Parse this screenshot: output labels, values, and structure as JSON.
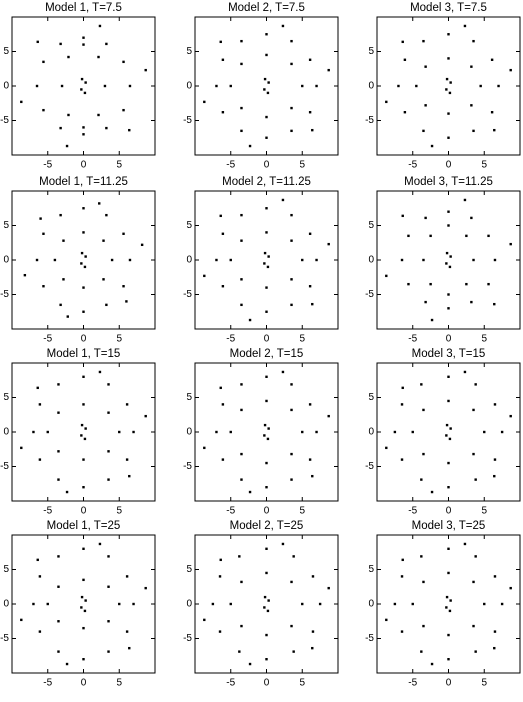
{
  "chart_data": [
    {
      "type": "scatter",
      "title": "Model 1, T=7.5",
      "xlim": [
        -10,
        10
      ],
      "ylim": [
        -10,
        10
      ],
      "xticks": [
        -5,
        0,
        5
      ],
      "yticks": [
        -5,
        0,
        5
      ],
      "color": "#000000",
      "x": [
        6.5,
        5.6,
        3.2,
        0,
        -3.2,
        -5.6,
        -6.5,
        -5.6,
        -3.2,
        0,
        3.2,
        5.6,
        3,
        2.1,
        0,
        -2.1,
        -3,
        -2.1,
        0,
        2.1,
        0.3,
        -0.3,
        0.2,
        -0.2,
        8.7,
        2.3,
        -6.4,
        -8.7,
        -2.3,
        6.4
      ],
      "y": [
        0,
        3.5,
        6.1,
        7,
        6.1,
        3.5,
        0,
        -3.5,
        -6.1,
        -7,
        -6.1,
        -3.5,
        0,
        4.2,
        6,
        4.2,
        0,
        -4.2,
        -6,
        -4.2,
        0.5,
        -0.5,
        -1,
        1,
        2.3,
        8.7,
        6.4,
        -2.3,
        -8.7,
        -6.4
      ]
    },
    {
      "type": "scatter",
      "title": "Model 2, T=7.5",
      "xlim": [
        -10,
        10
      ],
      "ylim": [
        -10,
        10
      ],
      "xticks": [
        -5,
        0,
        5
      ],
      "yticks": [
        -5,
        0,
        5
      ],
      "color": "#000000",
      "x": [
        7,
        6.1,
        3.5,
        0,
        -3.5,
        -6.1,
        -7,
        -6.1,
        -3.5,
        0,
        3.5,
        6.1,
        5,
        3.5,
        0,
        -3.5,
        -5,
        -3.5,
        0,
        3.5,
        0.3,
        -0.3,
        0.2,
        -0.2,
        8.7,
        2.3,
        -6.4,
        -8.7,
        -2.3,
        6.4
      ],
      "y": [
        0,
        3.8,
        6.5,
        7.5,
        6.5,
        3.8,
        0,
        -3.8,
        -6.5,
        -7.5,
        -6.5,
        -3.8,
        0,
        3.2,
        4.5,
        3.2,
        0,
        -3.2,
        -4.5,
        -3.2,
        0.5,
        -0.5,
        -1,
        1,
        2.3,
        8.7,
        6.4,
        -2.3,
        -8.7,
        -6.4
      ]
    },
    {
      "type": "scatter",
      "title": "Model 3, T=7.5",
      "xlim": [
        -10,
        10
      ],
      "ylim": [
        -10,
        10
      ],
      "xticks": [
        -5,
        0,
        5
      ],
      "yticks": [
        -5,
        0,
        5
      ],
      "color": "#000000",
      "x": [
        7,
        6.1,
        3.5,
        0,
        -3.5,
        -6.1,
        -7,
        -6.1,
        -3.5,
        0,
        3.5,
        6.1,
        4.5,
        3.2,
        0,
        -3.2,
        -4.5,
        -3.2,
        0,
        3.2,
        0.3,
        -0.3,
        0.2,
        -0.2,
        8.7,
        2.3,
        -6.4,
        -8.7,
        -2.3,
        6.4
      ],
      "y": [
        0,
        3.8,
        6.5,
        7.5,
        6.5,
        3.8,
        0,
        -3.8,
        -6.5,
        -7.5,
        -6.5,
        -3.8,
        0,
        2.8,
        4,
        2.8,
        0,
        -2.8,
        -4,
        -2.8,
        0.5,
        -0.5,
        -1,
        1,
        2.3,
        8.7,
        6.4,
        -2.3,
        -8.7,
        -6.4
      ]
    },
    {
      "type": "scatter",
      "title": "Model 1, T=11.25",
      "xlim": [
        -10,
        10
      ],
      "ylim": [
        -10,
        10
      ],
      "xticks": [
        -5,
        0,
        5
      ],
      "yticks": [
        -5,
        0,
        5
      ],
      "color": "#000000",
      "x": [
        6.5,
        5.6,
        3.2,
        0,
        -3.2,
        -5.6,
        -6.5,
        -5.6,
        -3.2,
        0,
        3.2,
        5.6,
        4,
        2.8,
        0,
        -2.8,
        -4,
        -2.8,
        0,
        2.8,
        0.3,
        -0.3,
        0.2,
        -0.2,
        8.2,
        2.2,
        -6,
        -8.2,
        -2.2,
        6
      ],
      "y": [
        0,
        3.8,
        6.5,
        7.5,
        6.5,
        3.8,
        0,
        -3.8,
        -6.5,
        -7.5,
        -6.5,
        -3.8,
        0,
        2.8,
        4,
        2.8,
        0,
        -2.8,
        -4,
        -2.8,
        0.5,
        -0.5,
        -1,
        1,
        2.2,
        8.2,
        6,
        -2.2,
        -8.2,
        -6
      ]
    },
    {
      "type": "scatter",
      "title": "Model 2, T=11.25",
      "xlim": [
        -10,
        10
      ],
      "ylim": [
        -10,
        10
      ],
      "xticks": [
        -5,
        0,
        5
      ],
      "yticks": [
        -5,
        0,
        5
      ],
      "color": "#000000",
      "x": [
        7,
        6.1,
        3.5,
        0,
        -3.5,
        -6.1,
        -7,
        -6.1,
        -3.5,
        0,
        3.5,
        6.1,
        5,
        3.5,
        0,
        -3.5,
        -5,
        -3.5,
        0,
        3.5,
        0.3,
        -0.3,
        0.2,
        -0.2,
        8.7,
        2.3,
        -6.4,
        -8.7,
        -2.3,
        6.4
      ],
      "y": [
        0,
        3.8,
        6.5,
        7.5,
        6.5,
        3.8,
        0,
        -3.8,
        -6.5,
        -7.5,
        -6.5,
        -3.8,
        0,
        2.8,
        4,
        2.8,
        0,
        -2.8,
        -4,
        -2.8,
        0.5,
        -0.5,
        -1,
        1,
        2.3,
        8.7,
        6.4,
        -2.3,
        -8.7,
        -6.4
      ]
    },
    {
      "type": "scatter",
      "title": "Model 3, T=11.25",
      "xlim": [
        -10,
        10
      ],
      "ylim": [
        -10,
        10
      ],
      "xticks": [
        -5,
        0,
        5
      ],
      "yticks": [
        -5,
        0,
        5
      ],
      "color": "#000000",
      "x": [
        6.5,
        5.6,
        3.2,
        0,
        -3.2,
        -5.6,
        -6.5,
        -5.6,
        -3.2,
        0,
        3.2,
        5.6,
        3.5,
        2.5,
        0,
        -2.5,
        -3.5,
        -2.5,
        0,
        2.5,
        0.3,
        -0.3,
        0.2,
        -0.2,
        8.7,
        2.3,
        -6.4,
        -8.7,
        -2.3,
        6.4
      ],
      "y": [
        0,
        3.5,
        6.1,
        7,
        6.1,
        3.5,
        0,
        -3.5,
        -6.1,
        -7,
        -6.1,
        -3.5,
        0,
        3.5,
        5,
        3.5,
        0,
        -3.5,
        -5,
        -3.5,
        0.5,
        -0.5,
        -1,
        1,
        2.3,
        8.7,
        6.4,
        -2.3,
        -8.7,
        -6.4
      ]
    },
    {
      "type": "scatter",
      "title": "Model 1, T=15",
      "xlim": [
        -10,
        10
      ],
      "ylim": [
        -10,
        10
      ],
      "xticks": [
        -5,
        0,
        5
      ],
      "yticks": [
        -5,
        0,
        5
      ],
      "color": "#000000",
      "x": [
        7,
        6.1,
        3.5,
        0,
        -3.5,
        -6.1,
        -7,
        -6.1,
        -3.5,
        0,
        3.5,
        6.1,
        5,
        3.5,
        0,
        -3.5,
        -5,
        -3.5,
        0,
        3.5,
        0.3,
        -0.3,
        0.2,
        -0.2,
        8.7,
        2.3,
        -6.4,
        -8.7,
        -2.3,
        6.4
      ],
      "y": [
        0,
        4,
        6.9,
        8,
        6.9,
        4,
        0,
        -4,
        -6.9,
        -8,
        -6.9,
        -4,
        0,
        2.8,
        4,
        2.8,
        0,
        -2.8,
        -4,
        -2.8,
        0.5,
        -0.5,
        -1,
        1,
        2.3,
        8.7,
        6.4,
        -2.3,
        -8.7,
        -6.4
      ]
    },
    {
      "type": "scatter",
      "title": "Model 2, T=15",
      "xlim": [
        -10,
        10
      ],
      "ylim": [
        -10,
        10
      ],
      "xticks": [
        -5,
        0,
        5
      ],
      "yticks": [
        -5,
        0,
        5
      ],
      "color": "#000000",
      "x": [
        7,
        6.1,
        3.5,
        0,
        -3.5,
        -6.1,
        -7,
        -6.1,
        -3.5,
        0,
        3.5,
        6.1,
        5,
        3.5,
        0,
        -3.5,
        -5,
        -3.5,
        0,
        3.5,
        0.3,
        -0.3,
        0.2,
        -0.2,
        8.7,
        2.3,
        -6.4,
        -8.7,
        -2.3,
        6.4
      ],
      "y": [
        0,
        4,
        6.9,
        8,
        6.9,
        4,
        0,
        -4,
        -6.9,
        -8,
        -6.9,
        -4,
        0,
        3.2,
        4.5,
        3.2,
        0,
        -3.2,
        -4.5,
        -3.2,
        0.5,
        -0.5,
        -1,
        1,
        2.3,
        8.7,
        6.4,
        -2.3,
        -8.7,
        -6.4
      ]
    },
    {
      "type": "scatter",
      "title": "Model 3, T=15",
      "xlim": [
        -10,
        10
      ],
      "ylim": [
        -10,
        10
      ],
      "xticks": [
        -5,
        0,
        5
      ],
      "yticks": [
        -5,
        0,
        5
      ],
      "color": "#000000",
      "x": [
        7.5,
        6.5,
        3.8,
        0,
        -3.8,
        -6.5,
        -7.5,
        -6.5,
        -3.8,
        0,
        3.8,
        6.5,
        5,
        3.5,
        0,
        -3.5,
        -5,
        -3.5,
        0,
        3.5,
        0.3,
        -0.3,
        0.2,
        -0.2,
        8.7,
        2.3,
        -6.4,
        -8.7,
        -2.3,
        6.4
      ],
      "y": [
        0,
        4,
        6.9,
        8,
        6.9,
        4,
        0,
        -4,
        -6.9,
        -8,
        -6.9,
        -4,
        0,
        3.2,
        4.5,
        3.2,
        0,
        -3.2,
        -4.5,
        -3.2,
        0.5,
        -0.5,
        -1,
        1,
        2.3,
        8.7,
        6.4,
        -2.3,
        -8.7,
        -6.4
      ]
    },
    {
      "type": "scatter",
      "title": "Model 1, T=25",
      "xlim": [
        -10,
        10
      ],
      "ylim": [
        -10,
        10
      ],
      "xticks": [
        -5,
        0,
        5
      ],
      "yticks": [
        -5,
        0,
        5
      ],
      "color": "#000000",
      "x": [
        7,
        6.1,
        3.5,
        0,
        -3.5,
        -6.1,
        -7,
        -6.1,
        -3.5,
        0,
        3.5,
        6.1,
        5,
        3.5,
        0,
        -3.5,
        -5,
        -3.5,
        0,
        3.5,
        0.3,
        -0.3,
        0.2,
        -0.2,
        8.7,
        2.3,
        -6.4,
        -8.7,
        -2.3,
        6.4
      ],
      "y": [
        0,
        4,
        6.9,
        8,
        6.9,
        4,
        0,
        -4,
        -6.9,
        -8,
        -6.9,
        -4,
        0,
        2.5,
        3.5,
        2.5,
        0,
        -2.5,
        -3.5,
        -2.5,
        0.5,
        -0.5,
        -1,
        1,
        2.3,
        8.7,
        6.4,
        -2.3,
        -8.7,
        -6.4
      ]
    },
    {
      "type": "scatter",
      "title": "Model 2, T=25",
      "xlim": [
        -10,
        10
      ],
      "ylim": [
        -10,
        10
      ],
      "xticks": [
        -5,
        0,
        5
      ],
      "yticks": [
        -5,
        0,
        5
      ],
      "color": "#000000",
      "x": [
        7.5,
        6.5,
        3.8,
        0,
        -3.8,
        -6.5,
        -7.5,
        -6.5,
        -3.8,
        0,
        3.8,
        6.5,
        5,
        3.5,
        0,
        -3.5,
        -5,
        -3.5,
        0,
        3.5,
        0.3,
        -0.3,
        0.2,
        -0.2,
        8.7,
        2.3,
        -6.4,
        -8.7,
        -2.3,
        6.4
      ],
      "y": [
        0,
        4,
        6.9,
        8,
        6.9,
        4,
        0,
        -4,
        -6.9,
        -8,
        -6.9,
        -4,
        0,
        3.2,
        4.5,
        3.2,
        0,
        -3.2,
        -4.5,
        -3.2,
        0.5,
        -0.5,
        -1,
        1,
        2.3,
        8.7,
        6.4,
        -2.3,
        -8.7,
        -6.4
      ]
    },
    {
      "type": "scatter",
      "title": "Model 3, T=25",
      "xlim": [
        -10,
        10
      ],
      "ylim": [
        -10,
        10
      ],
      "xticks": [
        -5,
        0,
        5
      ],
      "yticks": [
        -5,
        0,
        5
      ],
      "color": "#000000",
      "x": [
        7.5,
        6.5,
        3.8,
        0,
        -3.8,
        -6.5,
        -7.5,
        -6.5,
        -3.8,
        0,
        3.8,
        6.5,
        5,
        3.5,
        0,
        -3.5,
        -5,
        -3.5,
        0,
        3.5,
        0.3,
        -0.3,
        0.2,
        -0.2,
        8.7,
        2.3,
        -6.4,
        -8.7,
        -2.3,
        6.4
      ],
      "y": [
        0,
        4,
        6.9,
        8,
        6.9,
        4,
        0,
        -4,
        -6.9,
        -8,
        -6.9,
        -4,
        0,
        3.2,
        4.5,
        3.2,
        0,
        -3.2,
        -4.5,
        -3.2,
        0.5,
        -0.5,
        -1,
        1,
        2.3,
        8.7,
        6.4,
        -2.3,
        -8.7,
        -6.4
      ]
    }
  ]
}
